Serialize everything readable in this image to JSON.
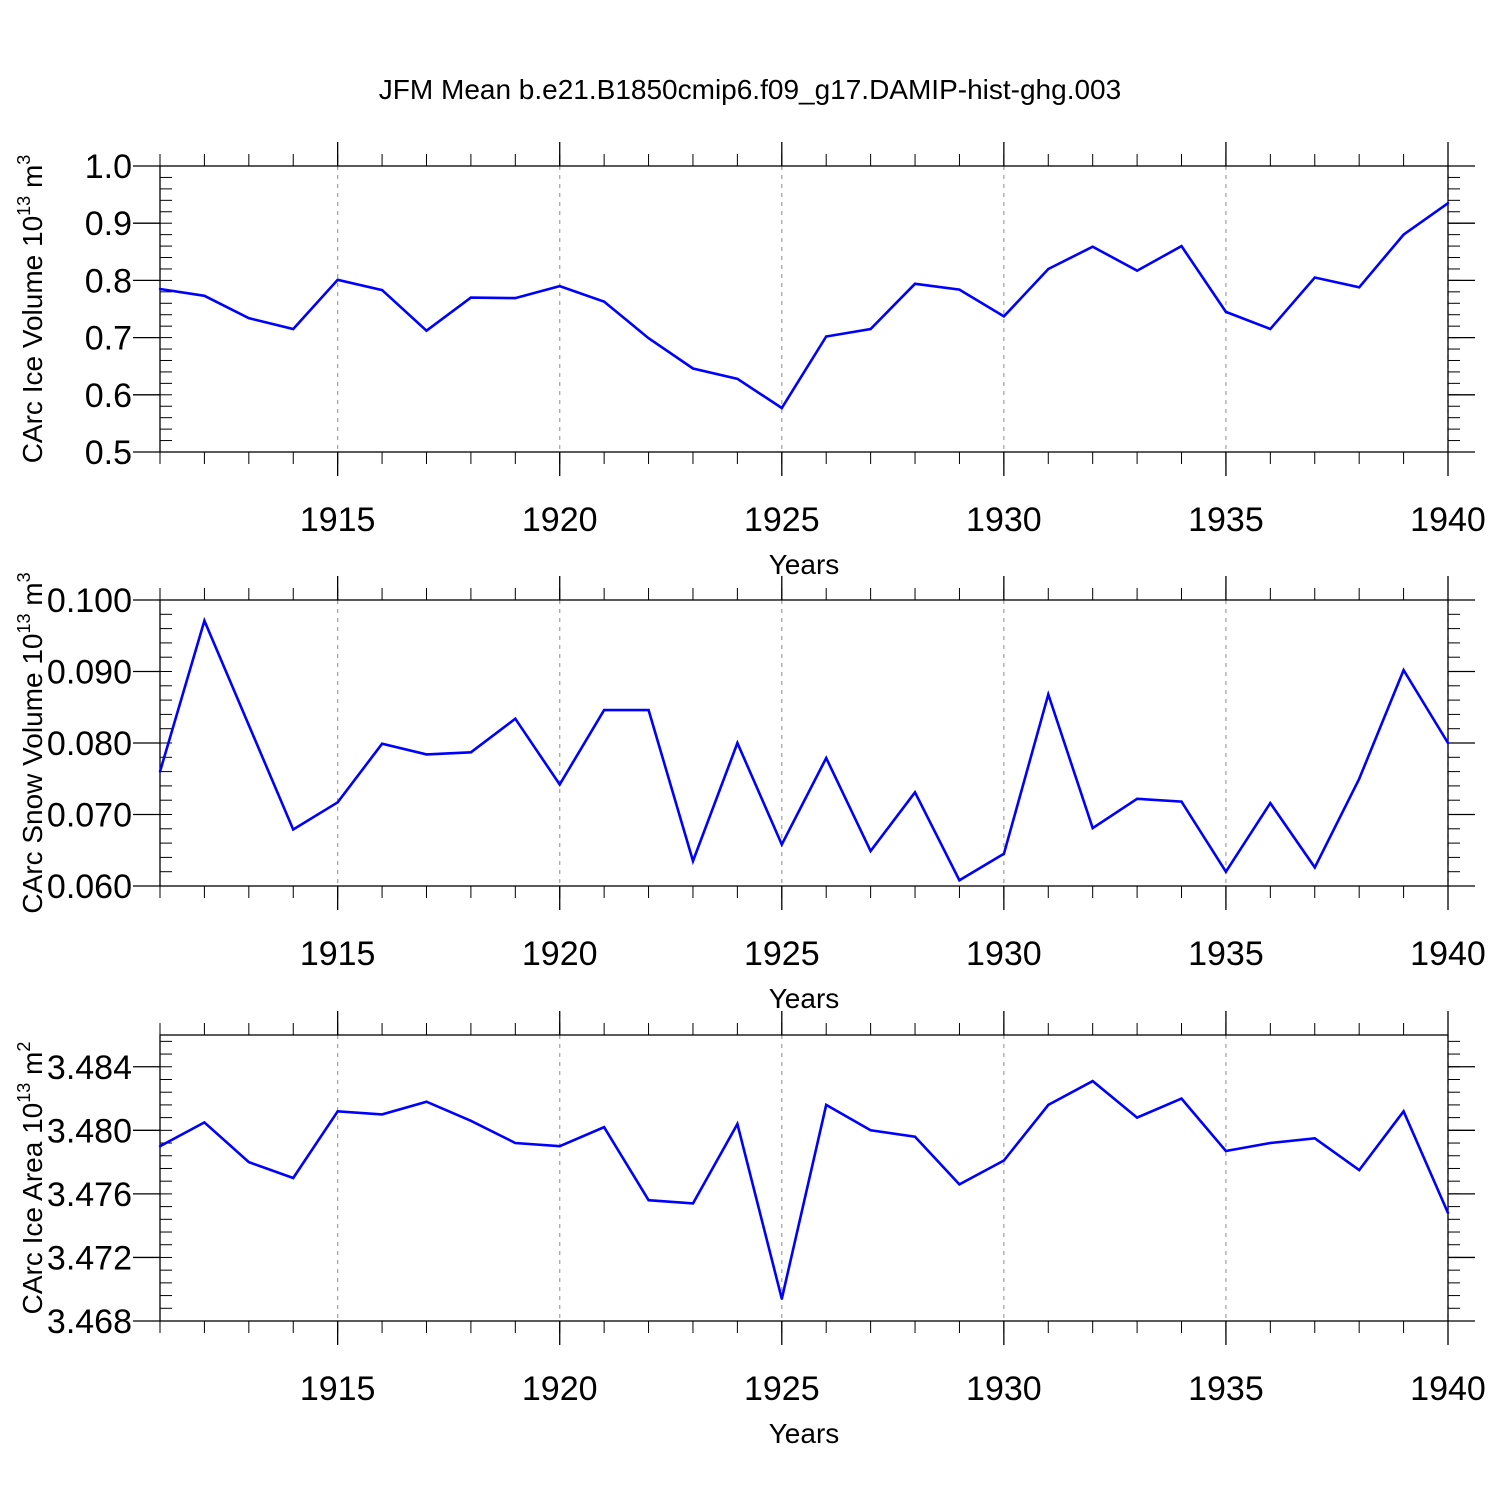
{
  "figure": {
    "title": "JFM Mean b.e21.B1850cmip6.f09_g17.DAMIP-hist-ghg.003"
  },
  "colors": {
    "series": "#0000ff",
    "axis": "#000000",
    "grid": "#a6a6a6"
  },
  "chart_data": [
    {
      "type": "line",
      "ylabel": "CArc Ice Volume 10",
      "ylabel_exp": "13",
      "ylabel_unit": " m",
      "ylabel_unit_exp": "3",
      "xlabel": "Years",
      "xlim": [
        1911,
        1940
      ],
      "ylim": [
        0.5,
        1.0
      ],
      "yticks": [
        0.5,
        0.6,
        0.7,
        0.8,
        0.9,
        1.0
      ],
      "ytick_labels": [
        "0.5",
        "0.6",
        "0.7",
        "0.8",
        "0.9",
        "1.0"
      ],
      "xticks": [
        1915,
        1920,
        1925,
        1930,
        1935,
        1940
      ],
      "xtick_labels": [
        "1915",
        "1920",
        "1925",
        "1930",
        "1935",
        "1940"
      ],
      "x": [
        1911,
        1912,
        1913,
        1914,
        1915,
        1916,
        1917,
        1918,
        1919,
        1920,
        1921,
        1922,
        1923,
        1924,
        1925,
        1926,
        1927,
        1928,
        1929,
        1930,
        1931,
        1932,
        1933,
        1934,
        1935,
        1936,
        1937,
        1938,
        1939,
        1940
      ],
      "values": [
        0.785,
        0.773,
        0.734,
        0.715,
        0.801,
        0.783,
        0.712,
        0.77,
        0.769,
        0.79,
        0.763,
        0.699,
        0.646,
        0.628,
        0.577,
        0.702,
        0.715,
        0.794,
        0.784,
        0.737,
        0.82,
        0.859,
        0.817,
        0.86,
        0.745,
        0.715,
        0.805,
        0.788,
        0.88,
        0.935
      ]
    },
    {
      "type": "line",
      "ylabel": "CArc Snow Volume 10",
      "ylabel_exp": "13",
      "ylabel_unit": " m",
      "ylabel_unit_exp": "3",
      "xlabel": "Years",
      "xlim": [
        1911,
        1940
      ],
      "ylim": [
        0.06,
        0.1
      ],
      "yticks": [
        0.06,
        0.07,
        0.08,
        0.09,
        0.1
      ],
      "ytick_labels": [
        "0.060",
        "0.070",
        "0.080",
        "0.090",
        "0.100"
      ],
      "xticks": [
        1915,
        1920,
        1925,
        1930,
        1935,
        1940
      ],
      "xtick_labels": [
        "1915",
        "1920",
        "1925",
        "1930",
        "1935",
        "1940"
      ],
      "x": [
        1911,
        1912,
        1913,
        1914,
        1915,
        1916,
        1917,
        1918,
        1919,
        1920,
        1921,
        1922,
        1923,
        1924,
        1925,
        1926,
        1927,
        1928,
        1929,
        1930,
        1931,
        1932,
        1933,
        1934,
        1935,
        1936,
        1937,
        1938,
        1939,
        1940
      ],
      "values": [
        0.076,
        0.0971,
        0.0825,
        0.0679,
        0.0717,
        0.0799,
        0.0784,
        0.0787,
        0.0834,
        0.0742,
        0.0846,
        0.0846,
        0.0635,
        0.08,
        0.0658,
        0.0779,
        0.0649,
        0.0731,
        0.0608,
        0.0645,
        0.0868,
        0.0681,
        0.0722,
        0.0718,
        0.062,
        0.0716,
        0.0626,
        0.075,
        0.0902,
        0.08
      ]
    },
    {
      "type": "line",
      "ylabel": "CArc Ice Area 10",
      "ylabel_exp": "13",
      "ylabel_unit": " m",
      "ylabel_unit_exp": "2",
      "xlabel": "Years",
      "xlim": [
        1911,
        1940
      ],
      "ylim": [
        3.468,
        3.486
      ],
      "yticks": [
        3.468,
        3.472,
        3.476,
        3.48,
        3.484
      ],
      "ytick_labels": [
        "3.468",
        "3.472",
        "3.476",
        "3.480",
        "3.484"
      ],
      "xticks": [
        1915,
        1920,
        1925,
        1930,
        1935,
        1940
      ],
      "xtick_labels": [
        "1915",
        "1920",
        "1925",
        "1930",
        "1935",
        "1940"
      ],
      "x": [
        1911,
        1912,
        1913,
        1914,
        1915,
        1916,
        1917,
        1918,
        1919,
        1920,
        1921,
        1922,
        1923,
        1924,
        1925,
        1926,
        1927,
        1928,
        1929,
        1930,
        1931,
        1932,
        1933,
        1934,
        1935,
        1936,
        1937,
        1938,
        1939,
        1940
      ],
      "values": [
        3.479,
        3.4805,
        3.478,
        3.477,
        3.4812,
        3.481,
        3.4818,
        3.4806,
        3.4792,
        3.479,
        3.4802,
        3.4756,
        3.4754,
        3.4804,
        3.4694,
        3.4816,
        3.48,
        3.4796,
        3.4766,
        3.4781,
        3.4816,
        3.4831,
        3.4808,
        3.482,
        3.4787,
        3.4792,
        3.4795,
        3.4775,
        3.4812,
        3.4748
      ]
    }
  ]
}
